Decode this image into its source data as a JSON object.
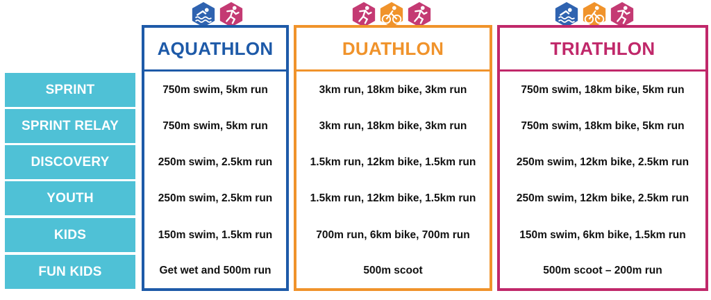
{
  "colors": {
    "row_label_bg": "#4fc1d6",
    "aquathlon": "#1e5aa8",
    "duathlon": "#f0932b",
    "triathlon": "#c0286a",
    "swim_icon_bg": "#2f63b0",
    "bike_icon_bg": "#f0932b",
    "run_icon_bg": "#c43a73"
  },
  "rows": [
    "SPRINT",
    "SPRINT RELAY",
    "DISCOVERY",
    "YOUTH",
    "KIDS",
    "FUN KIDS"
  ],
  "columns": [
    {
      "title": "AQUATHLON",
      "icons": [
        "swim-icon",
        "run-icon"
      ],
      "cells": [
        "750m swim, 5km run",
        "750m swim, 5km run",
        "250m swim, 2.5km run",
        "250m swim, 2.5km run",
        "150m swim, 1.5km run",
        "Get wet and 500m run"
      ]
    },
    {
      "title": "DUATHLON",
      "icons": [
        "run-icon",
        "bike-icon",
        "run-icon"
      ],
      "cells": [
        "3km run, 18km bike, 3km run",
        "3km run, 18km bike, 3km run",
        "1.5km run, 12km bike, 1.5km run",
        "1.5km run, 12km bike, 1.5km run",
        "700m run, 6km bike, 700m run",
        "500m scoot"
      ]
    },
    {
      "title": "TRIATHLON",
      "icons": [
        "swim-icon",
        "bike-icon",
        "run-icon"
      ],
      "cells": [
        "750m swim, 18km bike, 5km run",
        "750m swim, 18km bike, 5km run",
        "250m swim, 12km bike, 2.5km run",
        "250m swim, 12km bike, 2.5km run",
        "150m swim, 6km bike, 1.5km run",
        "500m scoot – 200m run"
      ]
    }
  ]
}
